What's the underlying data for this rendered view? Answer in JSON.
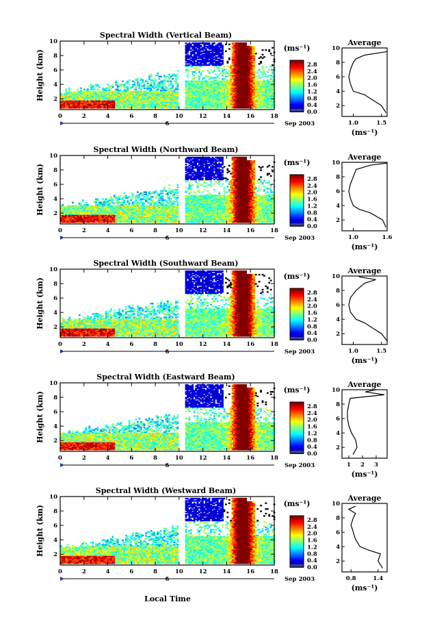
{
  "figure": {
    "xlabel": "Local Time",
    "date_label": "Sep 2003",
    "day_marker": "6",
    "colorbar_unit": "(ms⁻¹)",
    "colorbar_ticks": [
      "2.8",
      "2.4",
      "2.0",
      "1.6",
      "1.2",
      "0.8",
      "0.4",
      "0.0"
    ],
    "avg_unit": "(ms⁻¹)",
    "ylabel": "Height (km)",
    "avg_title": "Average"
  },
  "chart_data": [
    {
      "type": "heatmap",
      "title": "Spectral Width (Vertical Beam)",
      "xlabel": "Local Time",
      "ylabel": "Height (km)",
      "xlim": [
        0,
        18
      ],
      "ylim": [
        0.5,
        10
      ],
      "xticks": [
        "0",
        "2",
        "4",
        "6",
        "8",
        "10",
        "12",
        "14",
        "16",
        "18"
      ],
      "yticks": [
        "2",
        "4",
        "6",
        "8",
        "10"
      ],
      "colorbar": {
        "unit": "ms-1",
        "range": [
          0.0,
          2.8
        ]
      },
      "average": {
        "title": "Average",
        "xticks": [
          "1.0",
          "1.5"
        ],
        "xlim": [
          0.8,
          1.6
        ],
        "profile": [
          [
            1.58,
            1.0
          ],
          [
            1.5,
            2
          ],
          [
            1.3,
            3
          ],
          [
            1.2,
            3.5
          ],
          [
            1.0,
            4
          ],
          [
            0.95,
            5
          ],
          [
            0.92,
            6
          ],
          [
            0.95,
            7
          ],
          [
            1.0,
            8
          ],
          [
            1.05,
            8.5
          ],
          [
            1.2,
            9
          ],
          [
            1.6,
            9.5
          ]
        ]
      }
    },
    {
      "type": "heatmap",
      "title": "Spectral Width (Northward Beam)",
      "xlabel": "Local Time",
      "ylabel": "Height (km)",
      "xlim": [
        0,
        18
      ],
      "ylim": [
        0.5,
        10
      ],
      "xticks": [
        "0",
        "2",
        "4",
        "6",
        "8",
        "10",
        "12",
        "14",
        "16",
        "18"
      ],
      "yticks": [
        "2",
        "4",
        "6",
        "8",
        "10"
      ],
      "colorbar": {
        "unit": "ms-1",
        "range": [
          0.0,
          2.8
        ]
      },
      "average": {
        "title": "Average",
        "xticks": [
          "1.0",
          "1.6"
        ],
        "xlim": [
          0.8,
          1.6
        ],
        "profile": [
          [
            1.58,
            1.0
          ],
          [
            1.52,
            2
          ],
          [
            1.3,
            3
          ],
          [
            1.1,
            3.5
          ],
          [
            1.0,
            4
          ],
          [
            0.95,
            5
          ],
          [
            0.92,
            6
          ],
          [
            0.95,
            7
          ],
          [
            1.0,
            8
          ],
          [
            1.05,
            9
          ],
          [
            1.3,
            9.6
          ],
          [
            1.6,
            9.9
          ]
        ]
      }
    },
    {
      "type": "heatmap",
      "title": "Spectral Width (Southward Beam)",
      "xlabel": "Local Time",
      "ylabel": "Height (km)",
      "xlim": [
        0,
        18
      ],
      "ylim": [
        0.5,
        10
      ],
      "xticks": [
        "0",
        "2",
        "4",
        "6",
        "8",
        "10",
        "12",
        "14",
        "16",
        "18"
      ],
      "yticks": [
        "2",
        "4",
        "6",
        "8",
        "10"
      ],
      "colorbar": {
        "unit": "ms-1",
        "range": [
          0.0,
          2.8
        ]
      },
      "average": {
        "title": "Average",
        "xticks": [
          "1.0",
          "1.5"
        ],
        "xlim": [
          0.8,
          1.6
        ],
        "profile": [
          [
            1.6,
            1.0
          ],
          [
            1.5,
            2
          ],
          [
            1.3,
            3
          ],
          [
            1.2,
            3.5
          ],
          [
            1.05,
            4
          ],
          [
            0.95,
            5
          ],
          [
            0.92,
            6
          ],
          [
            0.95,
            7
          ],
          [
            1.05,
            8
          ],
          [
            1.2,
            9
          ],
          [
            1.4,
            9.5
          ],
          [
            1.1,
            9.9
          ]
        ]
      }
    },
    {
      "type": "heatmap",
      "title": "Spectral Width (Eastward Beam)",
      "xlabel": "Local Time",
      "ylabel": "Height (km)",
      "xlim": [
        0,
        18
      ],
      "ylim": [
        0.5,
        10
      ],
      "xticks": [
        "0",
        "2",
        "4",
        "6",
        "8",
        "10",
        "12",
        "14",
        "16",
        "18"
      ],
      "yticks": [
        "2",
        "4",
        "6",
        "8",
        "10"
      ],
      "colorbar": {
        "unit": "ms-1",
        "range": [
          0.0,
          2.8
        ]
      },
      "average": {
        "title": "Average",
        "xticks": [
          "1",
          "2",
          "3"
        ],
        "xlim": [
          0.5,
          3.8
        ],
        "profile": [
          [
            1.3,
            1.0
          ],
          [
            1.6,
            2
          ],
          [
            1.5,
            3
          ],
          [
            1.2,
            4
          ],
          [
            1.0,
            5
          ],
          [
            0.9,
            6
          ],
          [
            0.9,
            7
          ],
          [
            1.0,
            8
          ],
          [
            1.1,
            8.8
          ],
          [
            3.6,
            9.3
          ],
          [
            2.2,
            9.7
          ],
          [
            3.0,
            10
          ]
        ]
      }
    },
    {
      "type": "heatmap",
      "title": "Spectral Width (Westward Beam)",
      "xlabel": "Local Time",
      "ylabel": "Height (km)",
      "xlim": [
        0,
        18
      ],
      "ylim": [
        0.5,
        10
      ],
      "xticks": [
        "0",
        "2",
        "4",
        "6",
        "8",
        "10",
        "12",
        "14",
        "16",
        "18"
      ],
      "yticks": [
        "2",
        "4",
        "6",
        "8",
        "10"
      ],
      "colorbar": {
        "unit": "ms-1",
        "range": [
          0.0,
          2.8
        ]
      },
      "average": {
        "title": "Average",
        "xticks": [
          "0.8",
          "1.4"
        ],
        "xlim": [
          0.6,
          1.6
        ],
        "profile": [
          [
            1.5,
            1.0
          ],
          [
            1.4,
            2
          ],
          [
            1.45,
            3
          ],
          [
            1.2,
            3.5
          ],
          [
            1.0,
            4
          ],
          [
            0.9,
            5
          ],
          [
            0.85,
            6
          ],
          [
            0.8,
            7
          ],
          [
            0.85,
            8
          ],
          [
            0.9,
            8.6
          ],
          [
            0.75,
            9.2
          ],
          [
            0.9,
            9.6
          ]
        ]
      }
    }
  ]
}
